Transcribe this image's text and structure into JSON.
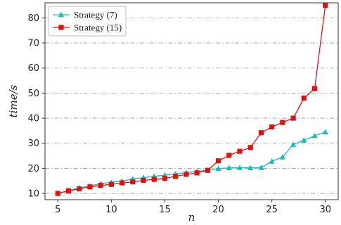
{
  "chart_data": {
    "type": "line",
    "title": "",
    "xlabel": "n",
    "ylabel": "time/s",
    "xlim": [
      3.8,
      31.2
    ],
    "ylim": [
      7.5,
      86
    ],
    "xticks": [
      5,
      10,
      15,
      20,
      25,
      30
    ],
    "yticks": [
      10,
      20,
      30,
      40,
      50,
      60,
      70,
      80
    ],
    "grid": "horizontal-dashdot",
    "legend_position": "top-left",
    "x": [
      5,
      6,
      7,
      8,
      9,
      10,
      11,
      12,
      13,
      14,
      15,
      16,
      17,
      18,
      19,
      20,
      21,
      22,
      23,
      24,
      25,
      26,
      27,
      28,
      29,
      30
    ],
    "series": [
      {
        "name": "Strategy (7)",
        "color": "#20b8b8",
        "marker": "triangle",
        "values": [
          10.0,
          11.2,
          12.2,
          13.0,
          13.9,
          14.4,
          14.9,
          15.8,
          16.3,
          16.8,
          17.3,
          17.8,
          18.3,
          18.8,
          19.3,
          19.9,
          20.2,
          20.3,
          20.2,
          20.3,
          22.8,
          24.5,
          29.5,
          31.2,
          33.0,
          34.5
        ]
      },
      {
        "name": "Strategy (15)",
        "color": "#e01010",
        "marker": "square",
        "values": [
          10.0,
          11.0,
          11.8,
          12.6,
          13.2,
          13.6,
          14.2,
          14.6,
          15.2,
          15.6,
          16.0,
          16.8,
          17.6,
          18.2,
          19.2,
          23.0,
          25.2,
          26.8,
          28.3,
          34.2,
          36.5,
          38.3,
          40.0,
          48.0,
          51.8,
          85.0
        ]
      }
    ]
  }
}
